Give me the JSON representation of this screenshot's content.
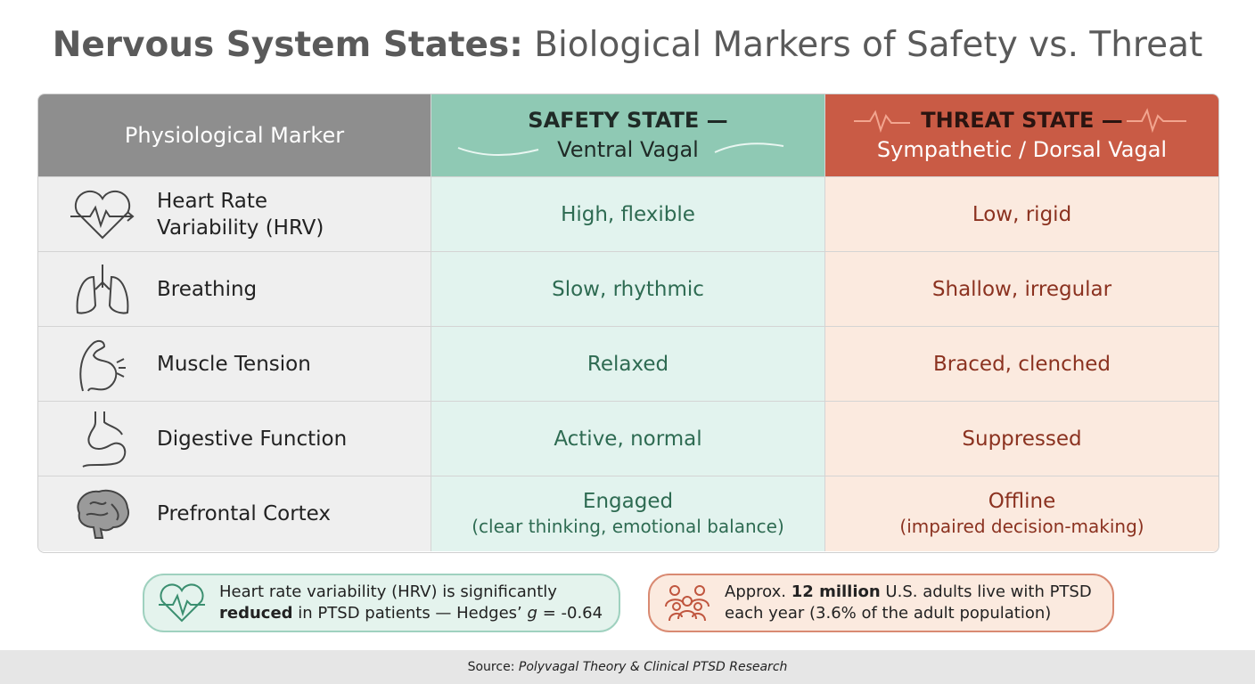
{
  "header": {
    "title_bold": "Nervous System States:",
    "title_rest": "Biological Markers of Safety vs. Threat"
  },
  "table": {
    "columns": [
      {
        "text": "Physiological Marker"
      },
      {
        "line1": "SAFETY STATE —",
        "line2": "Ventral Vagal"
      },
      {
        "line1": "THREAT STATE —",
        "line2": "Sympathetic / Dorsal Vagal"
      }
    ],
    "rows": [
      {
        "marker": "Heart Rate Variability (HRV)",
        "safety": "High, flexible",
        "threat": "Low, rigid"
      },
      {
        "marker": "Breathing",
        "safety": "Slow, rhythmic",
        "threat": "Shallow, irregular"
      },
      {
        "marker": "Muscle Tension",
        "safety": "Relaxed",
        "threat": "Braced, clenched"
      },
      {
        "marker": "Digestive Function",
        "safety": "Active, normal",
        "threat": "Suppressed"
      },
      {
        "marker": "Prefrontal Cortex",
        "safety": "Engaged",
        "safety_note": "(clear thinking, emotional balance)",
        "threat": "Offline",
        "threat_note": "(impaired decision-making)"
      }
    ]
  },
  "callouts": [
    {
      "parts": [
        "Heart rate variability (HRV) is significantly",
        "reduced",
        "in PTSD patients — Hedges’",
        "g",
        "= -0.64"
      ]
    },
    {
      "parts": [
        "Approx.",
        "12 million",
        "U.S. adults live with PTSD each year (3.6% of the adult population)"
      ]
    }
  ],
  "footer": {
    "label": "Source:",
    "source": "Polyvagal Theory & Clinical PTSD Research"
  }
}
